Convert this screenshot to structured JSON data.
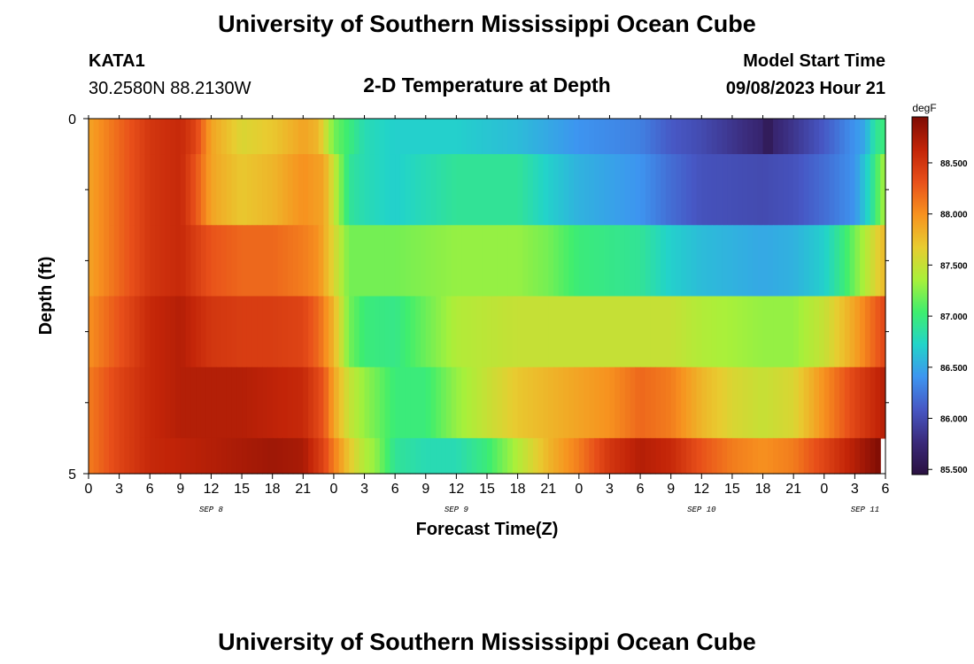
{
  "page": {
    "title": "University of Southern Mississippi Ocean Cube",
    "footer_title": "University of Southern Mississippi Ocean Cube",
    "station": "KATA1",
    "location": "30.2580N  88.2130W",
    "product": "2-D Temperature at Depth",
    "model_start_label": "Model Start Time",
    "model_start_value": "09/08/2023 Hour 21"
  },
  "chart_data": {
    "type": "heatmap",
    "xlabel": "Forecast Time(Z)",
    "ylabel": "Depth (ft)",
    "x_range_hours": [
      0,
      78
    ],
    "ylim": [
      0,
      5
    ],
    "y_tick_labels": [
      {
        "value": 0,
        "label": "0"
      },
      {
        "value": 5,
        "label": "5"
      }
    ],
    "y_minor_ticks": [
      1,
      2,
      3,
      4
    ],
    "x_ticks": [
      {
        "hour": 0,
        "label": "0"
      },
      {
        "hour": 3,
        "label": "3"
      },
      {
        "hour": 6,
        "label": "6"
      },
      {
        "hour": 9,
        "label": "9"
      },
      {
        "hour": 12,
        "label": "12"
      },
      {
        "hour": 15,
        "label": "15"
      },
      {
        "hour": 18,
        "label": "18"
      },
      {
        "hour": 21,
        "label": "21"
      },
      {
        "hour": 24,
        "label": "0"
      },
      {
        "hour": 27,
        "label": "3"
      },
      {
        "hour": 30,
        "label": "6"
      },
      {
        "hour": 33,
        "label": "9"
      },
      {
        "hour": 36,
        "label": "12"
      },
      {
        "hour": 39,
        "label": "15"
      },
      {
        "hour": 42,
        "label": "18"
      },
      {
        "hour": 45,
        "label": "21"
      },
      {
        "hour": 48,
        "label": "0"
      },
      {
        "hour": 51,
        "label": "3"
      },
      {
        "hour": 54,
        "label": "6"
      },
      {
        "hour": 57,
        "label": "9"
      },
      {
        "hour": 60,
        "label": "12"
      },
      {
        "hour": 63,
        "label": "15"
      },
      {
        "hour": 66,
        "label": "18"
      },
      {
        "hour": 69,
        "label": "21"
      },
      {
        "hour": 72,
        "label": "0"
      },
      {
        "hour": 75,
        "label": "3"
      },
      {
        "hour": 78,
        "label": "6"
      }
    ],
    "date_labels": [
      {
        "hour": 12,
        "label": "SEP 8"
      },
      {
        "hour": 36,
        "label": "SEP 9"
      },
      {
        "hour": 60,
        "label": "SEP 10"
      },
      {
        "hour": 76,
        "label": "SEP 11"
      }
    ],
    "colorbar": {
      "unit": "degF",
      "min": 85.45,
      "max": 88.95,
      "ticks": [
        85.5,
        86.0,
        86.5,
        87.0,
        87.5,
        88.0,
        88.5
      ],
      "tick_labels": [
        "85.500",
        "86.000",
        "86.500",
        "87.000",
        "87.500",
        "88.000",
        "88.500"
      ],
      "colors": [
        "#2a1040",
        "#3a2a7a",
        "#4757c4",
        "#3d95f0",
        "#22d4c9",
        "#3fee6e",
        "#a9f03a",
        "#e8cc30",
        "#f7921f",
        "#e8501a",
        "#c22408",
        "#7e0c04"
      ]
    },
    "depth_layers": [
      {
        "top": 0.0,
        "bottom": 0.5,
        "keys": [
          [
            0,
            87.9
          ],
          [
            3,
            88.2
          ],
          [
            6,
            88.5
          ],
          [
            9,
            88.6
          ],
          [
            10.5,
            88.4
          ],
          [
            12,
            87.9
          ],
          [
            15,
            87.6
          ],
          [
            18,
            87.7
          ],
          [
            21,
            87.9
          ],
          [
            22.5,
            87.8
          ],
          [
            24,
            87.2
          ],
          [
            25.5,
            87.0
          ],
          [
            27,
            86.8
          ],
          [
            30,
            86.7
          ],
          [
            36,
            86.7
          ],
          [
            42,
            86.6
          ],
          [
            45,
            86.5
          ],
          [
            48,
            86.4
          ],
          [
            54,
            86.3
          ],
          [
            57,
            86.1
          ],
          [
            60,
            86.0
          ],
          [
            63,
            85.85
          ],
          [
            66,
            85.7
          ],
          [
            66.5,
            85.5
          ],
          [
            67,
            85.7
          ],
          [
            69,
            85.85
          ],
          [
            72,
            86.1
          ],
          [
            74,
            86.3
          ],
          [
            76,
            86.5
          ],
          [
            77,
            86.9
          ],
          [
            78,
            87.0
          ]
        ]
      },
      {
        "top": 0.5,
        "bottom": 1.5,
        "keys": [
          [
            0,
            87.9
          ],
          [
            3,
            88.2
          ],
          [
            6,
            88.5
          ],
          [
            9,
            88.6
          ],
          [
            10.5,
            88.3
          ],
          [
            12,
            87.9
          ],
          [
            15,
            87.7
          ],
          [
            18,
            87.8
          ],
          [
            21,
            88.0
          ],
          [
            23,
            87.9
          ],
          [
            24,
            87.5
          ],
          [
            25.5,
            86.9
          ],
          [
            27,
            86.8
          ],
          [
            30,
            86.7
          ],
          [
            36,
            86.9
          ],
          [
            42,
            86.9
          ],
          [
            45,
            86.7
          ],
          [
            48,
            86.55
          ],
          [
            54,
            86.4
          ],
          [
            57,
            86.2
          ],
          [
            60,
            86.05
          ],
          [
            66,
            86.0
          ],
          [
            69,
            86.05
          ],
          [
            72,
            86.2
          ],
          [
            75,
            86.4
          ],
          [
            76.5,
            86.8
          ],
          [
            78,
            87.4
          ]
        ]
      },
      {
        "top": 1.5,
        "bottom": 2.5,
        "keys": [
          [
            0,
            87.9
          ],
          [
            3,
            88.2
          ],
          [
            6,
            88.5
          ],
          [
            9,
            88.6
          ],
          [
            12,
            88.3
          ],
          [
            15,
            88.2
          ],
          [
            18,
            88.2
          ],
          [
            21,
            88.1
          ],
          [
            22.5,
            88.0
          ],
          [
            24,
            87.6
          ],
          [
            25.5,
            87.2
          ],
          [
            27,
            87.2
          ],
          [
            30,
            87.2
          ],
          [
            36,
            87.3
          ],
          [
            42,
            87.3
          ],
          [
            45,
            87.2
          ],
          [
            48,
            87.0
          ],
          [
            54,
            86.9
          ],
          [
            57,
            86.7
          ],
          [
            60,
            86.6
          ],
          [
            63,
            86.55
          ],
          [
            66,
            86.5
          ],
          [
            69,
            86.55
          ],
          [
            72,
            86.7
          ],
          [
            74,
            87.0
          ],
          [
            76,
            87.4
          ],
          [
            78,
            87.8
          ]
        ]
      },
      {
        "top": 2.5,
        "bottom": 3.5,
        "keys": [
          [
            0,
            88.0
          ],
          [
            3,
            88.3
          ],
          [
            6,
            88.6
          ],
          [
            9,
            88.7
          ],
          [
            12,
            88.5
          ],
          [
            15,
            88.45
          ],
          [
            18,
            88.45
          ],
          [
            21,
            88.4
          ],
          [
            22.5,
            88.2
          ],
          [
            24,
            87.8
          ],
          [
            25.5,
            87.2
          ],
          [
            27,
            87.0
          ],
          [
            30,
            86.95
          ],
          [
            36,
            87.4
          ],
          [
            42,
            87.5
          ],
          [
            48,
            87.5
          ],
          [
            54,
            87.5
          ],
          [
            57,
            87.5
          ],
          [
            60,
            87.4
          ],
          [
            66,
            87.3
          ],
          [
            69,
            87.3
          ],
          [
            72,
            87.5
          ],
          [
            75,
            87.9
          ],
          [
            78,
            88.4
          ]
        ]
      },
      {
        "top": 3.5,
        "bottom": 4.5,
        "keys": [
          [
            0,
            88.1
          ],
          [
            3,
            88.4
          ],
          [
            6,
            88.6
          ],
          [
            9,
            88.7
          ],
          [
            15,
            88.7
          ],
          [
            21,
            88.6
          ],
          [
            23,
            88.3
          ],
          [
            24,
            87.9
          ],
          [
            25.5,
            87.5
          ],
          [
            27,
            87.3
          ],
          [
            30,
            87.0
          ],
          [
            33,
            87.0
          ],
          [
            36,
            87.3
          ],
          [
            42,
            87.7
          ],
          [
            48,
            87.9
          ],
          [
            51,
            88.0
          ],
          [
            54,
            88.2
          ],
          [
            57,
            88.1
          ],
          [
            60,
            87.8
          ],
          [
            63,
            87.6
          ],
          [
            66,
            87.5
          ],
          [
            69,
            87.6
          ],
          [
            72,
            88.0
          ],
          [
            75,
            88.4
          ],
          [
            78,
            88.7
          ]
        ]
      },
      {
        "top": 4.5,
        "bottom": 5.0,
        "keys": [
          [
            0,
            88.1
          ],
          [
            3,
            88.4
          ],
          [
            6,
            88.6
          ],
          [
            12,
            88.7
          ],
          [
            15,
            88.75
          ],
          [
            18,
            88.8
          ],
          [
            21,
            88.75
          ],
          [
            23,
            88.4
          ],
          [
            24,
            88.1
          ],
          [
            25.5,
            87.7
          ],
          [
            27,
            87.4
          ],
          [
            28,
            87.3
          ],
          [
            30,
            86.9
          ],
          [
            33,
            86.8
          ],
          [
            36,
            86.8
          ],
          [
            39,
            87.0
          ],
          [
            42,
            87.4
          ],
          [
            45,
            87.8
          ],
          [
            48,
            88.1
          ],
          [
            51,
            88.5
          ],
          [
            54,
            88.7
          ],
          [
            57,
            88.6
          ],
          [
            60,
            88.3
          ],
          [
            63,
            88.1
          ],
          [
            66,
            88.0
          ],
          [
            69,
            88.1
          ],
          [
            72,
            88.4
          ],
          [
            75,
            88.7
          ],
          [
            77.5,
            88.95
          ]
        ]
      }
    ]
  }
}
